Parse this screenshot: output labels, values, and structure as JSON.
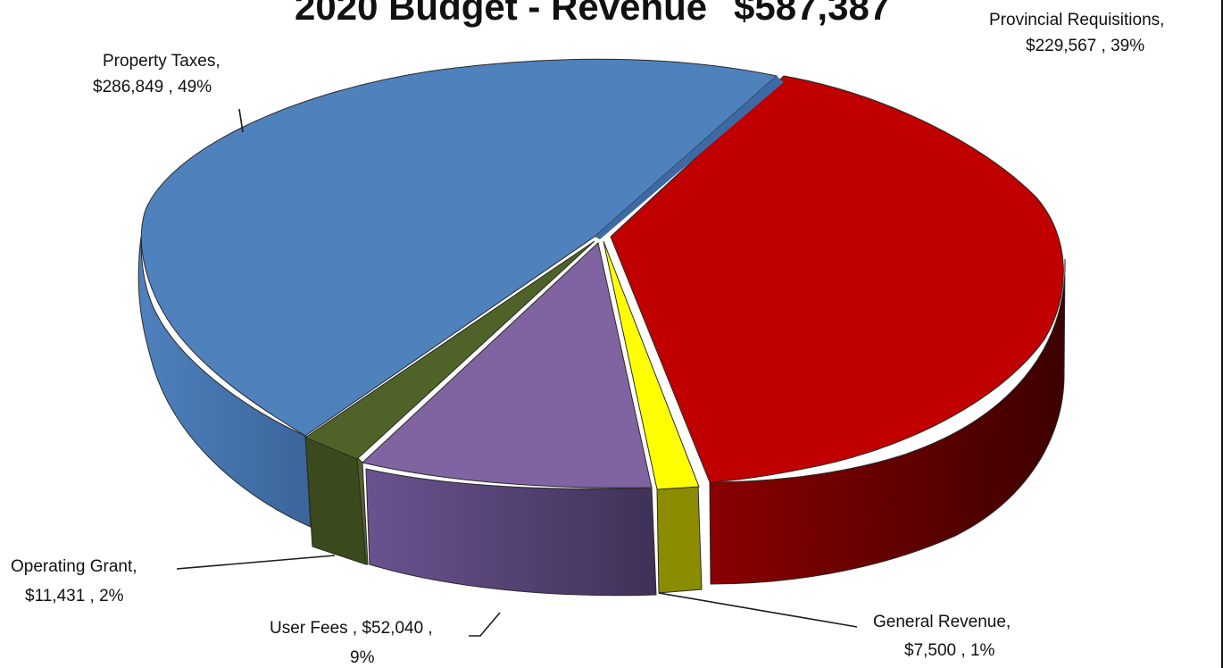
{
  "chart_data": {
    "type": "pie",
    "title": "2020 Budget - Revenue",
    "title_total": "$587,387",
    "style": "3d-exploded",
    "slices": [
      {
        "name": "Property Taxes",
        "value": 286849,
        "value_label": "$286,849",
        "percent_label": "49%",
        "label_lines": [
          "Property Taxes,",
          "$286,849 , 49%"
        ],
        "color": "#4f81bd",
        "side_color": "#3d6aa5"
      },
      {
        "name": "Provincial Requisitions",
        "value": 229567,
        "value_label": "$229,567",
        "percent_label": "39%",
        "label_lines": [
          "Provincial Requisitions,",
          "$229,567 , 39%"
        ],
        "color": "#c00000",
        "side_color": "#5a0000"
      },
      {
        "name": "General Revenue",
        "value": 7500,
        "value_label": "$7,500",
        "percent_label": "1%",
        "label_lines": [
          "General Revenue,",
          "$7,500 , 1%"
        ],
        "color": "#f2f200",
        "side_color": "#8c8c00"
      },
      {
        "name": "User Fees",
        "value": 52040,
        "value_label": "$52,040",
        "percent_label": "9%",
        "label_lines": [
          "User Fees ,  $52,040 ,",
          "9%"
        ],
        "color": "#8064a2",
        "side_color": "#4f3d66"
      },
      {
        "name": "Operating Grant",
        "value": 11431,
        "value_label": "$11,431",
        "percent_label": "2%",
        "label_lines": [
          "Operating Grant,",
          "$11,431 , 2%"
        ],
        "color": "#4f6228",
        "side_color": "#3a4a1c"
      }
    ]
  }
}
